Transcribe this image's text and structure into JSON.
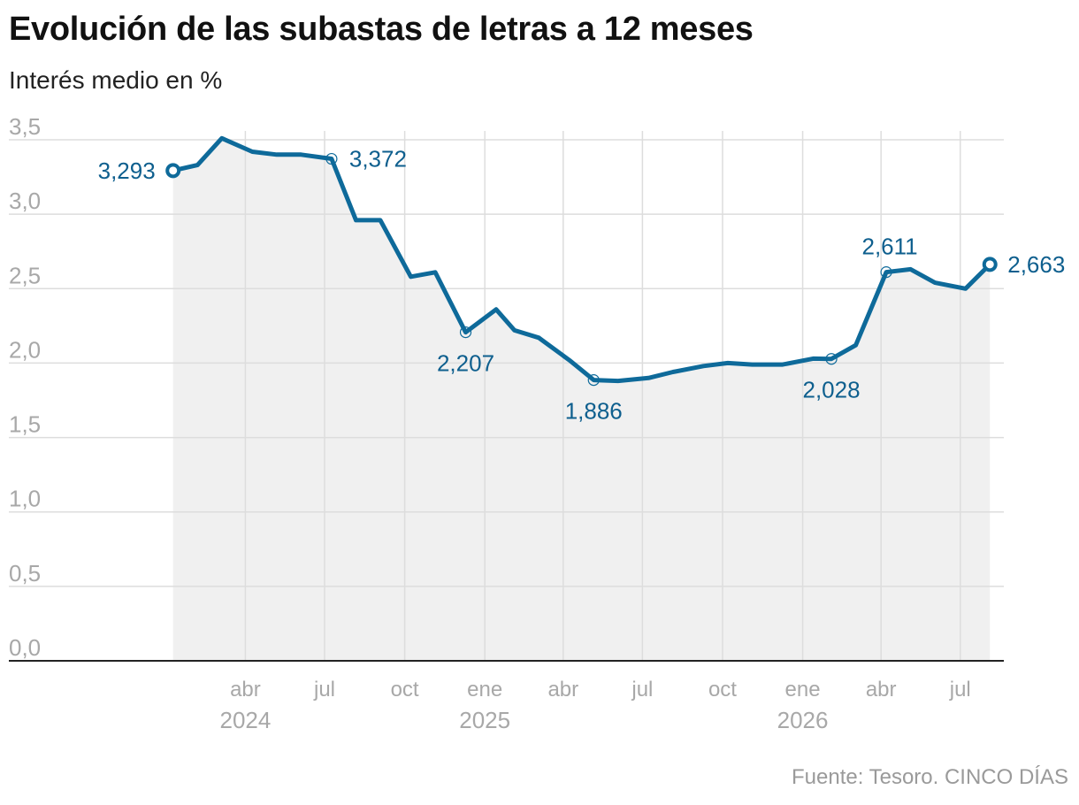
{
  "title": "Evolución de las subastas de letras a 12 meses",
  "subtitle": "Interés medio en %",
  "source": "Fuente: Tesoro. CINCO DÍAS",
  "colors": {
    "line": "#0e6a9a",
    "label": "#0e5f8e",
    "area": "#f0f0f0",
    "grid": "#dddddd",
    "axis": "#222222",
    "tick": "#a8a8a8"
  },
  "chart_data": {
    "type": "line",
    "title": "Evolución de las subastas de letras a 12 meses",
    "ylabel": "Interés medio en %",
    "xlabel": "",
    "ylim": [
      0,
      3.5
    ],
    "xlim": [
      "2023-12-20",
      "2026-08-20"
    ],
    "y_ticks": [
      {
        "value": 0,
        "label": "0,0"
      },
      {
        "value": 0.5,
        "label": "0,5"
      },
      {
        "value": 1,
        "label": "1,0"
      },
      {
        "value": 1.5,
        "label": "1,5"
      },
      {
        "value": 2,
        "label": "2,0"
      },
      {
        "value": 2.5,
        "label": "2,5"
      },
      {
        "value": 3,
        "label": "3,0"
      },
      {
        "value": 3.5,
        "label": "3,5"
      }
    ],
    "x_ticks": [
      {
        "date": "2024-04-01",
        "label": "abr",
        "year": "2024"
      },
      {
        "date": "2024-07-01",
        "label": "jul",
        "year": ""
      },
      {
        "date": "2024-10-01",
        "label": "oct",
        "year": ""
      },
      {
        "date": "2025-01-01",
        "label": "ene",
        "year": "2025"
      },
      {
        "date": "2025-04-01",
        "label": "abr",
        "year": ""
      },
      {
        "date": "2025-07-01",
        "label": "jul",
        "year": ""
      },
      {
        "date": "2025-10-01",
        "label": "oct",
        "year": ""
      },
      {
        "date": "2026-01-01",
        "label": "ene",
        "year": "2026"
      },
      {
        "date": "2026-04-01",
        "label": "abr",
        "year": ""
      },
      {
        "date": "2026-07-01",
        "label": "jul",
        "year": ""
      }
    ],
    "grid": true,
    "area_fill": true,
    "series": [
      {
        "points": [
          {
            "x": "2024-01-09",
            "y": 3.293,
            "label": "3,293",
            "marker": "end",
            "label_pos": "left"
          },
          {
            "x": "2024-02-06",
            "y": 3.33
          },
          {
            "x": "2024-03-05",
            "y": 3.51
          },
          {
            "x": "2024-04-09",
            "y": 3.42
          },
          {
            "x": "2024-05-07",
            "y": 3.4
          },
          {
            "x": "2024-06-04",
            "y": 3.4
          },
          {
            "x": "2024-07-09",
            "y": 3.372,
            "label": "3,372",
            "marker": "hollow",
            "label_pos": "right"
          },
          {
            "x": "2024-08-06",
            "y": 2.96
          },
          {
            "x": "2024-09-03",
            "y": 2.96
          },
          {
            "x": "2024-10-08",
            "y": 2.58
          },
          {
            "x": "2024-11-05",
            "y": 2.61
          },
          {
            "x": "2024-12-10",
            "y": 2.207,
            "label": "2,207",
            "marker": "hollow",
            "label_pos": "below"
          },
          {
            "x": "2025-01-14",
            "y": 2.36
          },
          {
            "x": "2025-02-04",
            "y": 2.22
          },
          {
            "x": "2025-03-04",
            "y": 2.17
          },
          {
            "x": "2025-04-08",
            "y": 2.02
          },
          {
            "x": "2025-05-06",
            "y": 1.886,
            "label": "1,886",
            "marker": "hollow",
            "label_pos": "below"
          },
          {
            "x": "2025-06-03",
            "y": 1.88
          },
          {
            "x": "2025-07-08",
            "y": 1.9
          },
          {
            "x": "2025-08-05",
            "y": 1.94
          },
          {
            "x": "2025-09-09",
            "y": 1.98
          },
          {
            "x": "2025-10-07",
            "y": 2.0
          },
          {
            "x": "2025-11-04",
            "y": 1.99
          },
          {
            "x": "2025-12-09",
            "y": 1.99
          },
          {
            "x": "2026-01-13",
            "y": 2.03
          },
          {
            "x": "2026-02-03",
            "y": 2.028,
            "label": "2,028",
            "marker": "hollow",
            "label_pos": "below"
          },
          {
            "x": "2026-03-03",
            "y": 2.12
          },
          {
            "x": "2026-04-07",
            "y": 2.611,
            "label": "2,611",
            "marker": "hollow",
            "label_pos": "above"
          },
          {
            "x": "2026-05-05",
            "y": 2.63
          },
          {
            "x": "2026-06-02",
            "y": 2.54
          },
          {
            "x": "2026-07-07",
            "y": 2.5
          },
          {
            "x": "2026-08-04",
            "y": 2.663,
            "label": "2,663",
            "marker": "end",
            "label_pos": "right"
          }
        ]
      }
    ]
  }
}
